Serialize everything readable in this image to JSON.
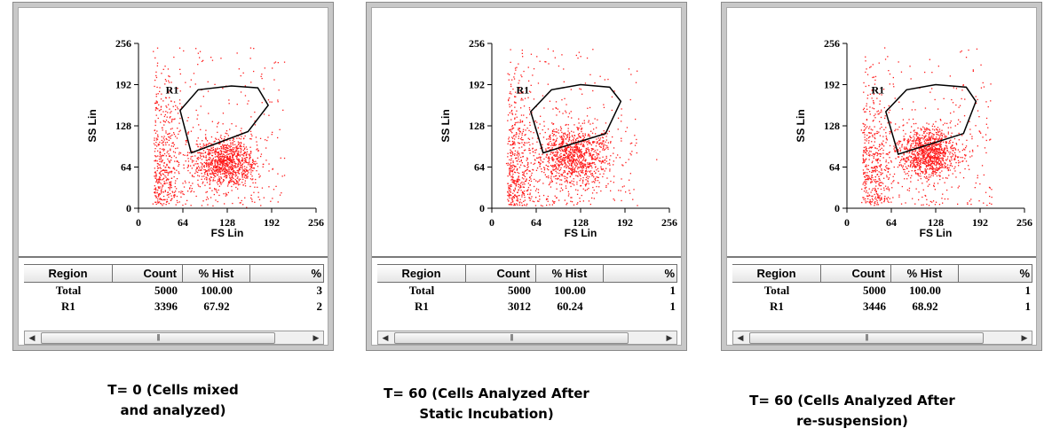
{
  "panels": [
    {
      "id": "t0",
      "caption_lines": [
        "T= 0 (Cells mixed",
        "and analyzed)"
      ],
      "plot": {
        "y_axis_label": "SS Lin",
        "x_axis_label": "FS Lin",
        "y_ticks": [
          "256",
          "192",
          "128",
          "64",
          "0"
        ],
        "x_ticks": [
          "0",
          "64",
          "128",
          "192",
          "256"
        ],
        "region_label": "R1",
        "point_color": "#ff1a1a",
        "gate_color": "#000000",
        "gate_polygon": [
          [
            60,
            44
          ],
          [
            86,
            12
          ],
          [
            134,
            6
          ],
          [
            172,
            9
          ],
          [
            187,
            36
          ],
          [
            158,
            77
          ],
          [
            76,
            110
          ]
        ],
        "cluster": {
          "fs": 124,
          "ss": 72,
          "spread_fs": 24,
          "spread_ss": 20
        }
      },
      "stats": {
        "headers": [
          "Region",
          "Count",
          "% Hist",
          "%"
        ],
        "rows": [
          {
            "region": "Total",
            "count": "5000",
            "hist": "100.00",
            "pct": "3"
          },
          {
            "region": "R1",
            "count": "3396",
            "hist": "67.92",
            "pct": "2"
          }
        ]
      }
    },
    {
      "id": "t60-static",
      "caption_lines": [
        "T= 60 (Cells Analyzed After",
        "Static Incubation)"
      ],
      "plot": {
        "y_axis_label": "SS Lin",
        "x_axis_label": "FS Lin",
        "y_ticks": [
          "256",
          "192",
          "128",
          "64",
          "0"
        ],
        "x_ticks": [
          "0",
          "64",
          "128",
          "192",
          "256"
        ],
        "region_label": "R1",
        "point_color": "#ff1a1a",
        "gate_color": "#000000",
        "gate_polygon": [
          [
            56,
            46
          ],
          [
            86,
            12
          ],
          [
            128,
            4
          ],
          [
            170,
            8
          ],
          [
            186,
            30
          ],
          [
            164,
            80
          ],
          [
            74,
            110
          ]
        ],
        "cluster": {
          "fs": 118,
          "ss": 82,
          "spread_fs": 26,
          "spread_ss": 24
        }
      },
      "stats": {
        "headers": [
          "Region",
          "Count",
          "% Hist",
          "%"
        ],
        "rows": [
          {
            "region": "Total",
            "count": "5000",
            "hist": "100.00",
            "pct": "1"
          },
          {
            "region": "R1",
            "count": "3012",
            "hist": "60.24",
            "pct": "1"
          }
        ]
      }
    },
    {
      "id": "t60-resuspension",
      "caption_lines": [
        "T= 60 (Cells Analyzed After",
        "re-suspension)"
      ],
      "plot": {
        "y_axis_label": "SS Lin",
        "x_axis_label": "FS Lin",
        "y_ticks": [
          "256",
          "192",
          "128",
          "64",
          "0"
        ],
        "x_ticks": [
          "0",
          "64",
          "128",
          "192",
          "256"
        ],
        "region_label": "R1",
        "point_color": "#ff1a1a",
        "gate_color": "#000000",
        "gate_polygon": [
          [
            56,
            46
          ],
          [
            86,
            12
          ],
          [
            128,
            4
          ],
          [
            172,
            8
          ],
          [
            186,
            30
          ],
          [
            168,
            80
          ],
          [
            74,
            112
          ]
        ],
        "cluster": {
          "fs": 116,
          "ss": 86,
          "spread_fs": 22,
          "spread_ss": 20
        }
      },
      "stats": {
        "headers": [
          "Region",
          "Count",
          "% Hist",
          "%"
        ],
        "rows": [
          {
            "region": "Total",
            "count": "5000",
            "hist": "100.00",
            "pct": "1"
          },
          {
            "region": "R1",
            "count": "3446",
            "hist": "68.92",
            "pct": "1"
          }
        ]
      }
    }
  ]
}
